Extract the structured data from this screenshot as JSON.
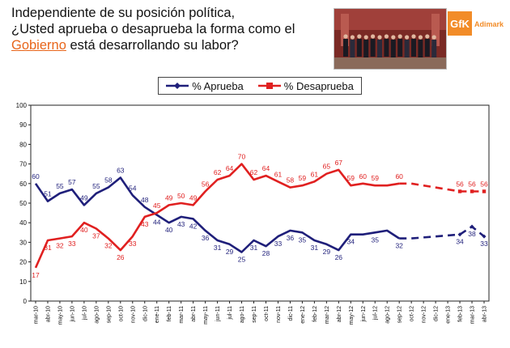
{
  "header": {
    "title_line1": "Independiente de su posición política,",
    "title_line2": "¿Usted aprueba o desaprueba la forma como el",
    "title_word_highlight": "Gobierno",
    "title_line3_rest": " está desarrollando su labor?"
  },
  "logo": {
    "brand": "GfK",
    "sub": "Adimark",
    "color": "#f28c28"
  },
  "legend": {
    "approve": "% Aprueba",
    "disapprove": "% Desaprueba"
  },
  "chart_data": {
    "type": "line",
    "categories": [
      "mar-10",
      "abr-10",
      "may-10",
      "jun-10",
      "jul-10",
      "ago-10",
      "sep-10",
      "oct-10",
      "nov-10",
      "dic-10",
      "ene-11",
      "feb-11",
      "mar-11",
      "abr-11",
      "may-11",
      "jun-11",
      "jul-11",
      "ago-11",
      "sep-11",
      "oct-11",
      "nov-11",
      "dic-11",
      "ene-12",
      "feb-12",
      "mar-12",
      "abr-12",
      "may-12",
      "jun-12",
      "jul-12",
      "ago-12",
      "sep-12",
      "oct-12",
      "nov-12",
      "dic-12",
      "ene-13",
      "feb-13",
      "mar-13",
      "abr-13"
    ],
    "ylim": [
      0,
      100
    ],
    "yticks": [
      0,
      10,
      20,
      30,
      40,
      50,
      60,
      70,
      80,
      90,
      100
    ],
    "grid": false,
    "legend_position": "top",
    "series": [
      {
        "name": "% Aprueba",
        "color": "#1f1f7a",
        "values": [
          60,
          51,
          55,
          57,
          49,
          55,
          58,
          63,
          54,
          48,
          44,
          40,
          43,
          42,
          36,
          31,
          29,
          25,
          31,
          28,
          33,
          36,
          35,
          31,
          29,
          26,
          34,
          34,
          35,
          36,
          32,
          32,
          null,
          null,
          null,
          34,
          38,
          33
        ],
        "labels": [
          "60",
          "51",
          "55",
          "57",
          "49",
          "55",
          "58",
          "63",
          "54",
          "48",
          "44",
          "40",
          "43",
          "42",
          "36",
          "31",
          "29",
          "25",
          "31",
          "28",
          "33",
          "36",
          "35",
          "31",
          "29",
          "26",
          "34",
          "",
          "35",
          "",
          "32",
          "",
          "",
          "",
          "",
          "34",
          "38",
          "33"
        ]
      },
      {
        "name": "% Desaprueba",
        "color": "#e02020",
        "values": [
          17,
          31,
          32,
          33,
          40,
          37,
          32,
          26,
          33,
          43,
          45,
          49,
          50,
          49,
          56,
          62,
          64,
          70,
          62,
          64,
          61,
          58,
          59,
          61,
          65,
          67,
          59,
          60,
          59,
          59,
          60,
          60,
          null,
          null,
          null,
          56,
          56,
          56
        ],
        "labels": [
          "17",
          "31",
          "32",
          "33",
          "40",
          "37",
          "32",
          "26",
          "33",
          "43",
          "45",
          "49",
          "50",
          "49",
          "56",
          "62",
          "64",
          "70",
          "62",
          "64",
          "61",
          "58",
          "59",
          "61",
          "65",
          "67",
          "59",
          "60",
          "59",
          "",
          "60",
          "",
          "",
          "",
          "",
          "56",
          "56",
          "56"
        ]
      }
    ]
  }
}
